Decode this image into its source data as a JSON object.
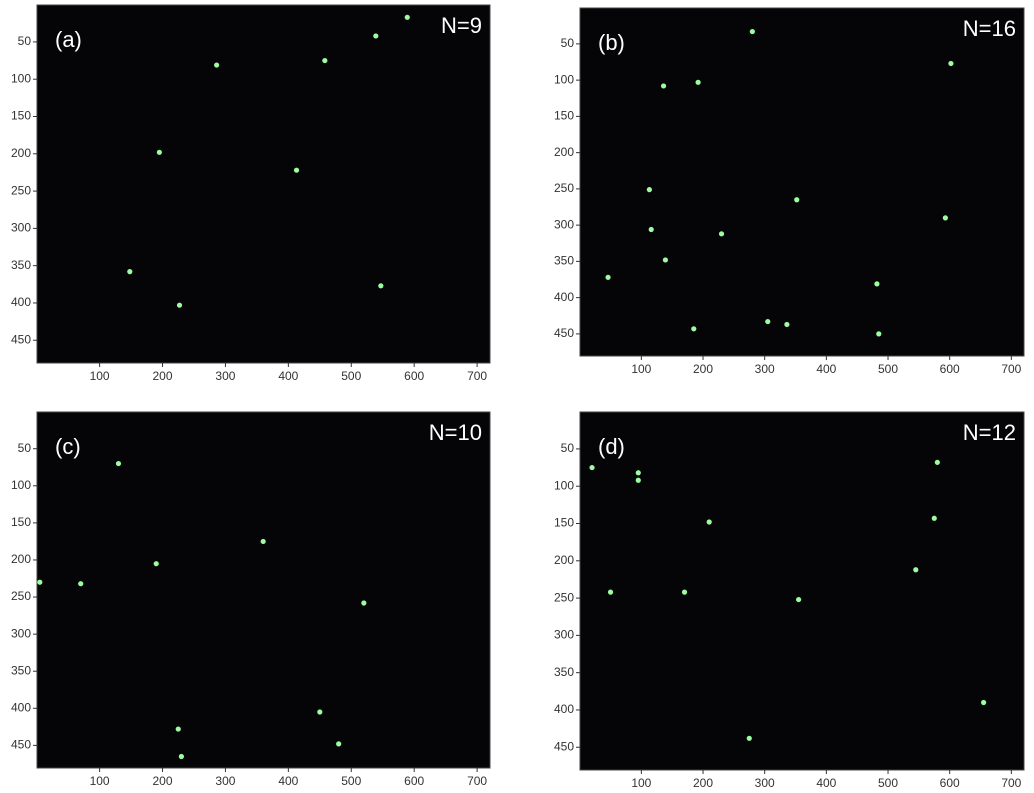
{
  "chart_data": [
    {
      "type": "scatter",
      "label": "(a)",
      "annotation": "N=9",
      "color": "#9dfca0",
      "x": [
        589,
        539,
        458,
        286,
        195,
        413,
        148,
        227,
        547
      ],
      "y": [
        17,
        42,
        75,
        81,
        198,
        222,
        358,
        403,
        377
      ],
      "xlim": [
        0.5,
        720.5
      ],
      "ylim": [
        480.5,
        0.5
      ],
      "xticks": [
        100,
        200,
        300,
        400,
        500,
        600,
        700
      ],
      "yticks": [
        50,
        100,
        150,
        200,
        250,
        300,
        350,
        400,
        450
      ]
    },
    {
      "type": "scatter",
      "label": "(b)",
      "annotation": "N=16",
      "color": "#9dfca0",
      "x": [
        280,
        602,
        136,
        192,
        113,
        116,
        352,
        230,
        593,
        139,
        46,
        482,
        185,
        305,
        336,
        485
      ],
      "y": [
        33,
        77,
        108,
        103,
        251,
        306,
        265,
        312,
        290,
        348,
        372,
        381,
        443,
        433,
        437,
        450
      ],
      "xlim": [
        0.5,
        720.5
      ],
      "ylim": [
        480.5,
        0.5
      ],
      "xticks": [
        100,
        200,
        300,
        400,
        500,
        600,
        700
      ],
      "yticks": [
        50,
        100,
        150,
        200,
        250,
        300,
        350,
        400,
        450
      ]
    },
    {
      "type": "scatter",
      "label": "(c)",
      "annotation": "N=10",
      "color": "#9dfca0",
      "x": [
        130,
        360,
        190,
        5,
        70,
        520,
        225,
        230,
        450,
        480
      ],
      "y": [
        70,
        175,
        205,
        230,
        232,
        258,
        428,
        465,
        405,
        448
      ],
      "xlim": [
        0.5,
        720.5
      ],
      "ylim": [
        480.5,
        0.5
      ],
      "xticks": [
        100,
        200,
        300,
        400,
        500,
        600,
        700
      ],
      "yticks": [
        50,
        100,
        150,
        200,
        250,
        300,
        350,
        400,
        450
      ]
    },
    {
      "type": "scatter",
      "label": "(d)",
      "annotation": "N=12",
      "color": "#9dfca0",
      "x": [
        20,
        95,
        95,
        210,
        580,
        575,
        545,
        50,
        170,
        355,
        655,
        275
      ],
      "y": [
        75,
        82,
        92,
        148,
        68,
        143,
        212,
        242,
        242,
        252,
        390,
        438
      ],
      "xlim": [
        0.5,
        720.5
      ],
      "ylim": [
        480.5,
        0.5
      ],
      "xticks": [
        100,
        200,
        300,
        400,
        500,
        600,
        700
      ],
      "yticks": [
        50,
        100,
        150,
        200,
        250,
        300,
        350,
        400,
        450
      ]
    }
  ]
}
